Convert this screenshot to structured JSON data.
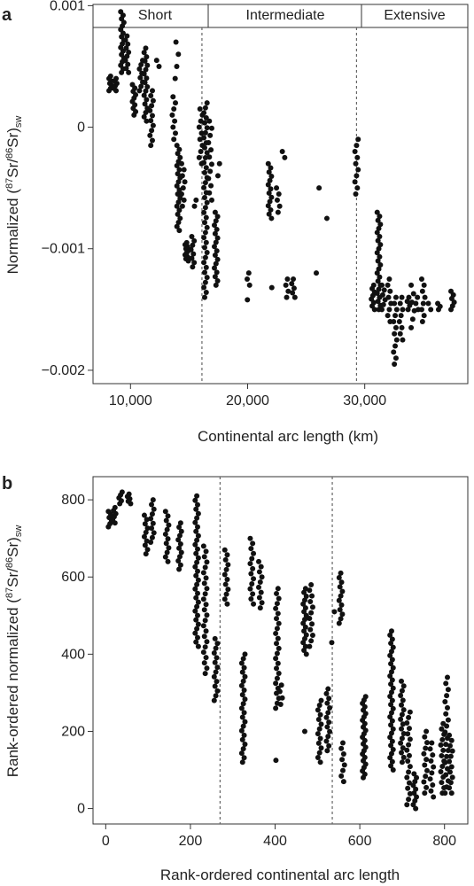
{
  "chart_data": [
    {
      "type": "scatter",
      "panel": "a",
      "xlabel": "Continental arc length (km)",
      "ylabel": "Normalized (87Sr/86Sr)sw",
      "ylabel_parts": {
        "prefix": "Normalized (",
        "sup1": "87",
        "mid": "Sr/",
        "sup2": "86",
        "suffix": "Sr)",
        "sub": "sw"
      },
      "xlim": [
        6800,
        38800
      ],
      "ylim": [
        -0.00211,
        0.00101
      ],
      "xticks": [
        10000,
        20000,
        30000
      ],
      "xtick_labels": [
        "10,000",
        "20,000",
        "30,000"
      ],
      "yticks": [
        0.001,
        0,
        -0.001,
        -0.002
      ],
      "ytick_labels": [
        "0.001",
        "0",
        "−0.001",
        "−0.002"
      ],
      "dividers": [
        16100,
        29300
      ],
      "regions": [
        "Short",
        "Intermediate",
        "Extensive"
      ],
      "clusters": [
        {
          "x": 8300,
          "y0": 0.0003,
          "y1": 0.00042,
          "n": 7
        },
        {
          "x": 8700,
          "y0": 0.0003,
          "y1": 0.0004,
          "n": 6
        },
        {
          "x": 9300,
          "y0": 0.00045,
          "y1": 0.00095,
          "n": 18
        },
        {
          "x": 9700,
          "y0": 0.00045,
          "y1": 0.00075,
          "n": 10
        },
        {
          "x": 10300,
          "y0": 0.0001,
          "y1": 0.00035,
          "n": 10
        },
        {
          "x": 10900,
          "y0": 0.0003,
          "y1": 0.00055,
          "n": 8
        },
        {
          "x": 11300,
          "y0": 5e-05,
          "y1": 0.00065,
          "n": 18
        },
        {
          "x": 11800,
          "y0": -0.00015,
          "y1": 0.0003,
          "n": 12
        },
        {
          "x": 12300,
          "y0": 0.0005,
          "y1": 0.00055,
          "n": 2
        },
        {
          "x": 13700,
          "y0": -0.0001,
          "y1": 0.00025,
          "n": 8
        },
        {
          "x": 13950,
          "y0": 0.0004,
          "y1": 0.0007,
          "n": 4
        },
        {
          "x": 14100,
          "y0": -0.00085,
          "y1": -0.00015,
          "n": 22
        },
        {
          "x": 14500,
          "y0": -0.00065,
          "y1": -0.0003,
          "n": 8
        },
        {
          "x": 14800,
          "y0": -0.0011,
          "y1": -0.00095,
          "n": 10
        },
        {
          "x": 15300,
          "y0": -0.00115,
          "y1": -0.0009,
          "n": 8
        },
        {
          "x": 15600,
          "y0": -0.00065,
          "y1": -0.0006,
          "n": 2
        },
        {
          "x": 16000,
          "y0": -0.0003,
          "y1": 0.00015,
          "n": 10
        },
        {
          "x": 16400,
          "y0": -0.0014,
          "y1": 0.0002,
          "n": 40
        },
        {
          "x": 16800,
          "y0": -0.0006,
          "y1": 5e-05,
          "n": 12
        },
        {
          "x": 17300,
          "y0": -0.0013,
          "y1": -0.0007,
          "n": 18
        },
        {
          "x": 17600,
          "y0": -0.0004,
          "y1": -0.0003,
          "n": 2
        },
        {
          "x": 20100,
          "y0": -0.0013,
          "y1": -0.0012,
          "n": 3
        },
        {
          "x": 20050,
          "y0": -0.00142,
          "y1": -0.00142,
          "n": 1
        },
        {
          "x": 21900,
          "y0": -0.00075,
          "y1": -0.0003,
          "n": 14
        },
        {
          "x": 22600,
          "y0": -0.0007,
          "y1": -0.0005,
          "n": 5
        },
        {
          "x": 22200,
          "y0": -0.00132,
          "y1": -0.00132,
          "n": 1
        },
        {
          "x": 23100,
          "y0": -0.00025,
          "y1": -0.0002,
          "n": 2
        },
        {
          "x": 23400,
          "y0": -0.0014,
          "y1": -0.00125,
          "n": 4
        },
        {
          "x": 23900,
          "y0": -0.0014,
          "y1": -0.00125,
          "n": 5
        },
        {
          "x": 26100,
          "y0": -0.0005,
          "y1": -0.0005,
          "n": 1
        },
        {
          "x": 26000,
          "y0": -0.0012,
          "y1": -0.0012,
          "n": 1
        },
        {
          "x": 26700,
          "y0": -0.00075,
          "y1": -0.00075,
          "n": 1
        },
        {
          "x": 29300,
          "y0": -0.00055,
          "y1": -0.0001,
          "n": 10
        },
        {
          "x": 30700,
          "y0": -0.0015,
          "y1": -0.0013,
          "n": 8
        },
        {
          "x": 31200,
          "y0": -0.0015,
          "y1": -0.0007,
          "n": 25
        },
        {
          "x": 31600,
          "y0": -0.0015,
          "y1": -0.0013,
          "n": 6
        },
        {
          "x": 32100,
          "y0": -0.0016,
          "y1": -0.00125,
          "n": 8
        },
        {
          "x": 32600,
          "y0": -0.00195,
          "y1": -0.0014,
          "n": 12
        },
        {
          "x": 33100,
          "y0": -0.00175,
          "y1": -0.0014,
          "n": 8
        },
        {
          "x": 33700,
          "y0": -0.0015,
          "y1": -0.0014,
          "n": 4
        },
        {
          "x": 34100,
          "y0": -0.00165,
          "y1": -0.0013,
          "n": 6
        },
        {
          "x": 34500,
          "y0": -0.0015,
          "y1": -0.0014,
          "n": 3
        },
        {
          "x": 35000,
          "y0": -0.0016,
          "y1": -0.00125,
          "n": 8
        },
        {
          "x": 35500,
          "y0": -0.0015,
          "y1": -0.00145,
          "n": 2
        },
        {
          "x": 36300,
          "y0": -0.0015,
          "y1": -0.00145,
          "n": 3
        },
        {
          "x": 37500,
          "y0": -0.0015,
          "y1": -0.00135,
          "n": 6
        }
      ]
    },
    {
      "type": "scatter",
      "panel": "b",
      "xlabel": "Rank-ordered continental arc length",
      "ylabel": "Rank-ordered normalized (87Sr/86Sr)sw",
      "ylabel_parts": {
        "prefix": "Rank-ordered normalized (",
        "sup1": "87",
        "mid": "Sr/",
        "sup2": "86",
        "suffix": "Sr)",
        "sub": "sw"
      },
      "xlim": [
        -30,
        855
      ],
      "ylim": [
        -40,
        860
      ],
      "xticks": [
        0,
        200,
        400,
        600,
        800
      ],
      "xtick_labels": [
        "0",
        "200",
        "400",
        "600",
        "800"
      ],
      "yticks": [
        0,
        200,
        400,
        600,
        800
      ],
      "ytick_labels": [
        "0",
        "200",
        "400",
        "600",
        "800"
      ],
      "dividers": [
        270,
        535
      ],
      "clusters": [
        {
          "x": 10,
          "y0": 730,
          "y1": 770,
          "n": 6
        },
        {
          "x": 20,
          "y0": 740,
          "y1": 780,
          "n": 6
        },
        {
          "x": 35,
          "y0": 790,
          "y1": 820,
          "n": 5
        },
        {
          "x": 55,
          "y0": 790,
          "y1": 815,
          "n": 5
        },
        {
          "x": 95,
          "y0": 660,
          "y1": 760,
          "n": 10
        },
        {
          "x": 110,
          "y0": 690,
          "y1": 800,
          "n": 10
        },
        {
          "x": 145,
          "y0": 640,
          "y1": 770,
          "n": 12
        },
        {
          "x": 175,
          "y0": 620,
          "y1": 740,
          "n": 12
        },
        {
          "x": 215,
          "y0": 420,
          "y1": 810,
          "n": 35
        },
        {
          "x": 235,
          "y0": 350,
          "y1": 680,
          "n": 25
        },
        {
          "x": 260,
          "y0": 280,
          "y1": 440,
          "n": 14
        },
        {
          "x": 285,
          "y0": 530,
          "y1": 670,
          "n": 12
        },
        {
          "x": 325,
          "y0": 120,
          "y1": 400,
          "n": 25
        },
        {
          "x": 345,
          "y0": 530,
          "y1": 700,
          "n": 14
        },
        {
          "x": 365,
          "y0": 520,
          "y1": 640,
          "n": 10
        },
        {
          "x": 405,
          "y0": 260,
          "y1": 570,
          "n": 25
        },
        {
          "x": 400,
          "y0": 125,
          "y1": 125,
          "n": 1
        },
        {
          "x": 415,
          "y0": 270,
          "y1": 320,
          "n": 4
        },
        {
          "x": 470,
          "y0": 400,
          "y1": 570,
          "n": 18
        },
        {
          "x": 470,
          "y0": 200,
          "y1": 200,
          "n": 1
        },
        {
          "x": 485,
          "y0": 420,
          "y1": 580,
          "n": 12
        },
        {
          "x": 505,
          "y0": 120,
          "y1": 280,
          "n": 14
        },
        {
          "x": 525,
          "y0": 150,
          "y1": 310,
          "n": 14
        },
        {
          "x": 530,
          "y0": 430,
          "y1": 430,
          "n": 1
        },
        {
          "x": 540,
          "y0": 510,
          "y1": 510,
          "n": 1
        },
        {
          "x": 555,
          "y0": 480,
          "y1": 610,
          "n": 12
        },
        {
          "x": 560,
          "y0": 70,
          "y1": 170,
          "n": 8
        },
        {
          "x": 610,
          "y0": 80,
          "y1": 290,
          "n": 25
        },
        {
          "x": 675,
          "y0": 100,
          "y1": 460,
          "n": 35
        },
        {
          "x": 700,
          "y0": 120,
          "y1": 330,
          "n": 18
        },
        {
          "x": 715,
          "y0": 10,
          "y1": 250,
          "n": 18
        },
        {
          "x": 730,
          "y0": 0,
          "y1": 90,
          "n": 10
        },
        {
          "x": 755,
          "y0": 40,
          "y1": 200,
          "n": 12
        },
        {
          "x": 770,
          "y0": 30,
          "y1": 170,
          "n": 10
        },
        {
          "x": 795,
          "y0": 40,
          "y1": 220,
          "n": 14
        },
        {
          "x": 805,
          "y0": 40,
          "y1": 340,
          "n": 20
        },
        {
          "x": 815,
          "y0": 40,
          "y1": 190,
          "n": 12
        }
      ]
    }
  ]
}
